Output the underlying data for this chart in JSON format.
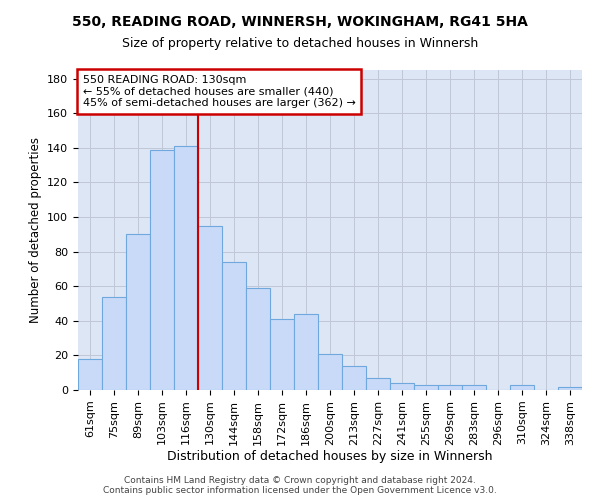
{
  "title": "550, READING ROAD, WINNERSH, WOKINGHAM, RG41 5HA",
  "subtitle": "Size of property relative to detached houses in Winnersh",
  "xlabel": "Distribution of detached houses by size in Winnersh",
  "ylabel": "Number of detached properties",
  "categories": [
    "61sqm",
    "75sqm",
    "89sqm",
    "103sqm",
    "116sqm",
    "130sqm",
    "144sqm",
    "158sqm",
    "172sqm",
    "186sqm",
    "200sqm",
    "213sqm",
    "227sqm",
    "241sqm",
    "255sqm",
    "269sqm",
    "283sqm",
    "296sqm",
    "310sqm",
    "324sqm",
    "338sqm"
  ],
  "values": [
    18,
    54,
    90,
    139,
    141,
    95,
    74,
    59,
    41,
    44,
    21,
    14,
    7,
    4,
    3,
    3,
    3,
    0,
    3,
    0,
    2
  ],
  "bar_color": "#c9daf8",
  "bar_edge_color": "#6fa8dc",
  "red_line_index": 5,
  "ylim": [
    0,
    185
  ],
  "yticks": [
    0,
    20,
    40,
    60,
    80,
    100,
    120,
    140,
    160,
    180
  ],
  "annotation_line1": "550 READING ROAD: 130sqm",
  "annotation_line2": "← 55% of detached houses are smaller (440)",
  "annotation_line3": "45% of semi-detached houses are larger (362) →",
  "annotation_box_color": "#ffffff",
  "annotation_box_edge_color": "#cc0000",
  "footer_line1": "Contains HM Land Registry data © Crown copyright and database right 2024.",
  "footer_line2": "Contains public sector information licensed under the Open Government Licence v3.0.",
  "background_color": "#ffffff",
  "grid_color": "#c0c8d8",
  "plot_bg_color": "#dce6f5"
}
